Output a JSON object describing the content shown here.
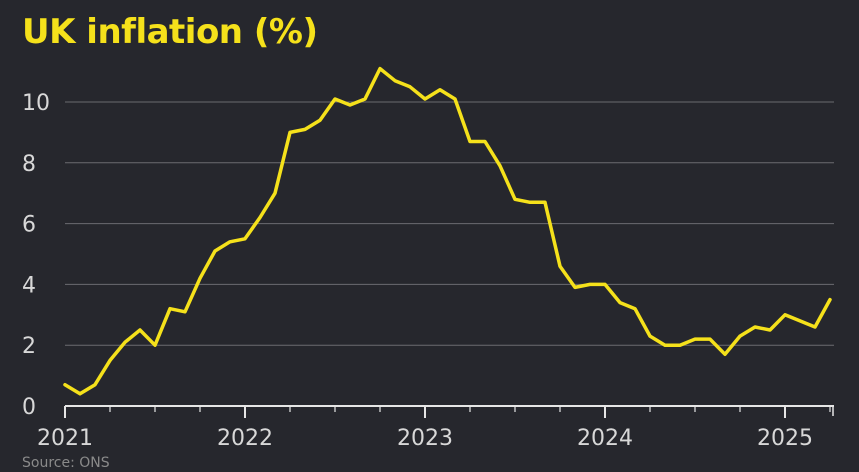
{
  "title": "UK inflation (%)",
  "source": "Source: ONS",
  "colors": {
    "background": "#26272d",
    "line": "#f5e11b",
    "grid": "#6b6b70",
    "text": "#d8d8d8"
  },
  "chart_data": {
    "type": "line",
    "title": "UK inflation (%)",
    "xlabel": "",
    "ylabel": "",
    "ylim": [
      0,
      11.5
    ],
    "yticks": [
      0,
      2,
      4,
      6,
      8,
      10
    ],
    "xticks": [
      "2021",
      "2022",
      "2023",
      "2024",
      "2025"
    ],
    "grid": true,
    "series": [
      {
        "x": [
          "2021-01",
          "2021-02",
          "2021-03",
          "2021-04",
          "2021-05",
          "2021-06",
          "2021-07",
          "2021-08",
          "2021-09",
          "2021-10",
          "2021-11",
          "2021-12",
          "2022-01",
          "2022-02",
          "2022-03",
          "2022-04",
          "2022-05",
          "2022-06",
          "2022-07",
          "2022-08",
          "2022-09",
          "2022-10",
          "2022-11",
          "2022-12",
          "2023-01",
          "2023-02",
          "2023-03",
          "2023-04",
          "2023-05",
          "2023-06",
          "2023-07",
          "2023-08",
          "2023-09",
          "2023-10",
          "2023-11",
          "2023-12",
          "2024-01",
          "2024-02",
          "2024-03",
          "2024-04",
          "2024-05",
          "2024-06",
          "2024-07",
          "2024-08",
          "2024-09",
          "2024-10",
          "2024-11",
          "2024-12",
          "2025-01",
          "2025-02",
          "2025-03",
          "2025-04"
        ],
        "values": [
          0.7,
          0.4,
          0.7,
          1.5,
          2.1,
          2.5,
          2.0,
          3.2,
          3.1,
          4.2,
          5.1,
          5.4,
          5.5,
          6.2,
          7.0,
          9.0,
          9.1,
          9.4,
          10.1,
          9.9,
          10.1,
          11.1,
          10.7,
          10.5,
          10.1,
          10.4,
          10.1,
          8.7,
          8.7,
          7.9,
          6.8,
          6.7,
          6.7,
          4.6,
          3.9,
          4.0,
          4.0,
          3.4,
          3.2,
          2.3,
          2.0,
          2.0,
          2.2,
          2.2,
          1.7,
          2.3,
          2.6,
          2.5,
          3.0,
          2.8,
          2.6,
          3.5
        ]
      }
    ]
  }
}
